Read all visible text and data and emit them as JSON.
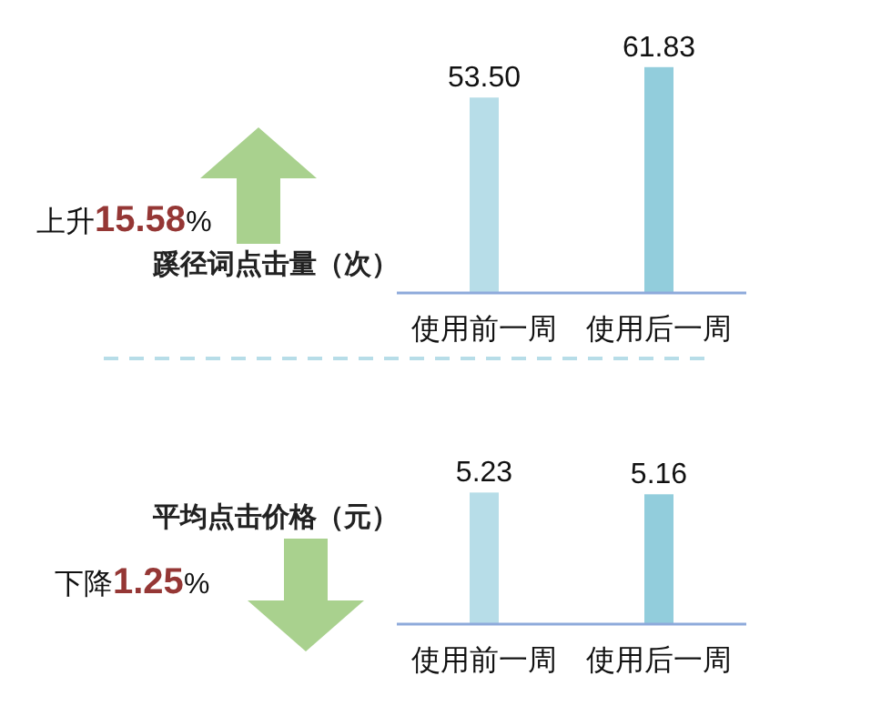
{
  "chart_data": [
    {
      "type": "bar",
      "title": "蹊径词点击量（次）",
      "categories": [
        "使用前一周",
        "使用后一周"
      ],
      "values": [
        53.5,
        61.83
      ],
      "value_labels": [
        "53.50",
        "61.83"
      ],
      "colors": [
        "#b7dde8",
        "#92cddc"
      ],
      "tick_labels": "x",
      "annotations": [
        "上升15.58%"
      ]
    },
    {
      "type": "bar",
      "title": "平均点击价格（元）",
      "categories": [
        "使用前一周",
        "使用后一周"
      ],
      "values": [
        5.23,
        5.16
      ],
      "value_labels": [
        "5.23",
        "5.16"
      ],
      "colors": [
        "#b7dde8",
        "#92cddc"
      ],
      "tick_labels": "x",
      "annotations": [
        "下降1.25%"
      ]
    }
  ]
}
